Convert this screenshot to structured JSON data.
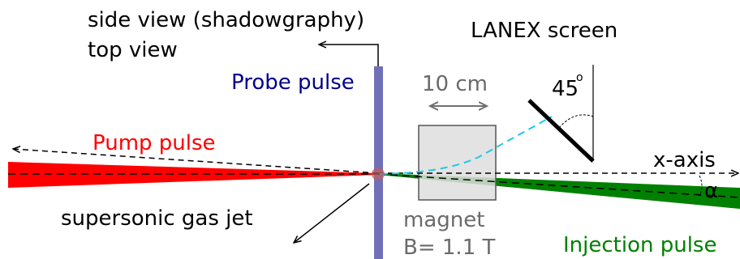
{
  "labels": {
    "side_view": "side view (shadowgraphy)",
    "top_view": "top view",
    "probe_pulse": "Probe pulse",
    "lanex_screen": "LANEX screen",
    "distance": "10 cm",
    "angle_45": "45",
    "angle_45_sup": "o",
    "pump_pulse": "Pump pulse",
    "x_axis": "x-axis",
    "alpha": "α",
    "gas_jet": "supersonic gas jet",
    "magnet": "magnet",
    "field": "B= 1.1 T",
    "injection_pulse": "Injection pulse"
  },
  "colors": {
    "pump": "#ff0000",
    "probe": "#7070b8",
    "injection": "#008000",
    "magnet_fill": "#dedede",
    "electron_path": "#1ec8e6",
    "probe_label": "#00008b",
    "grey_text": "#6a6a6a",
    "gas_jet_dot": "#c06060"
  }
}
